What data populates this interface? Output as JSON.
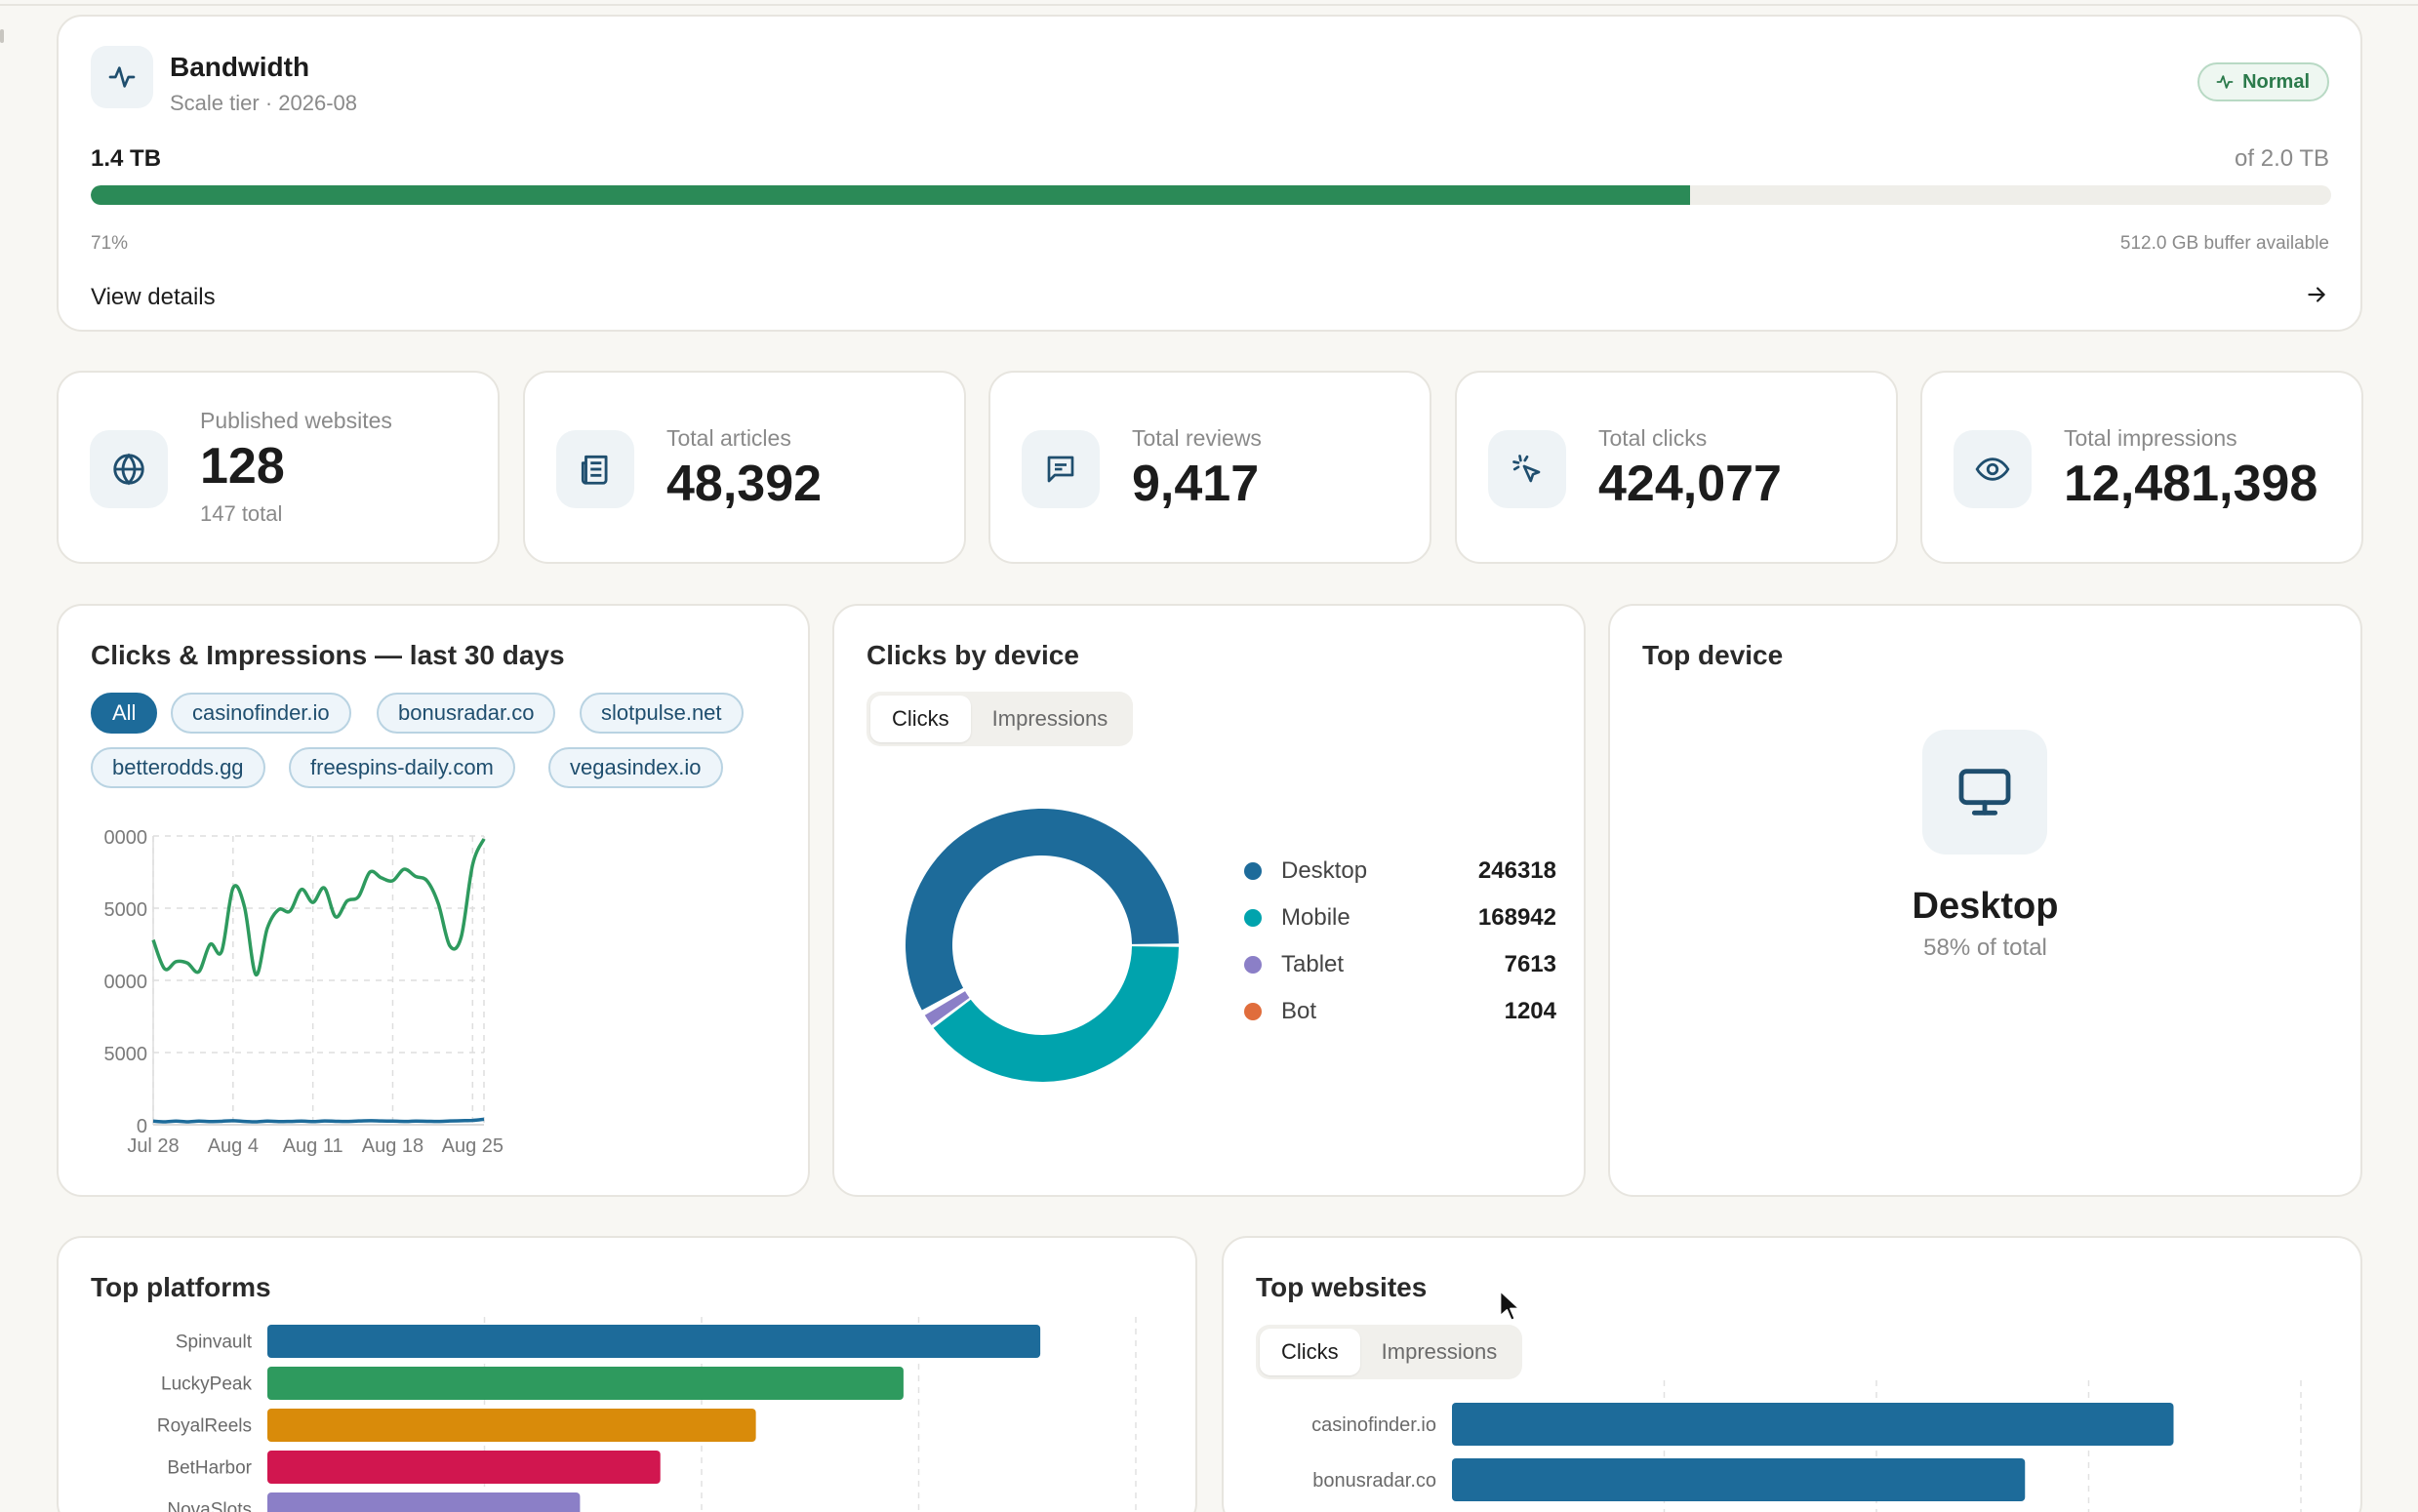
{
  "bandwidth": {
    "title": "Bandwidth",
    "subtitle": "Scale tier · 2026-08",
    "status": "Normal",
    "used": "1.4 TB",
    "total": "of 2.0 TB",
    "percent_label": "71%",
    "fill_fraction": 0.714,
    "buffer": "512.0 GB buffer available",
    "details_link": "View details",
    "colors": {
      "fill": "#2b8a57",
      "badge": "#2b7a4b"
    }
  },
  "stats": [
    {
      "label": "Published websites",
      "value": "128",
      "note": "147 total",
      "icon": "globe-icon"
    },
    {
      "label": "Total articles",
      "value": "48,392",
      "icon": "newspaper-icon"
    },
    {
      "label": "Total reviews",
      "value": "9,417",
      "icon": "message-icon"
    },
    {
      "label": "Total clicks",
      "value": "424,077",
      "icon": "cursor-click-icon"
    },
    {
      "label": "Total impressions",
      "value": "12,481,398",
      "icon": "eye-icon"
    }
  ],
  "line_card": {
    "title": "Clicks & Impressions — last 30 days",
    "filters": [
      "All",
      "casinofinder.io",
      "bonusradar.co",
      "slotpulse.net",
      "betterodds.gg",
      "freespins-daily.com",
      "vegasindex.io"
    ],
    "active_filter": "All"
  },
  "device_card": {
    "title": "Clicks by device",
    "tabs": [
      "Clicks",
      "Impressions"
    ],
    "active_tab": "Clicks"
  },
  "top_device": {
    "title": "Top device",
    "name": "Desktop",
    "share": "58% of total",
    "icon": "monitor-icon"
  },
  "platforms_card": {
    "title": "Top platforms"
  },
  "websites_card": {
    "title": "Top websites",
    "tabs": [
      "Clicks",
      "Impressions"
    ],
    "active_tab": "Clicks"
  },
  "chart_data": [
    {
      "type": "line",
      "title": "Clicks & Impressions — last 30 days",
      "x": [
        "Jul 28",
        "Jul 29",
        "Jul 30",
        "Jul 31",
        "Aug 1",
        "Aug 2",
        "Aug 3",
        "Aug 4",
        "Aug 5",
        "Aug 6",
        "Aug 7",
        "Aug 8",
        "Aug 9",
        "Aug 10",
        "Aug 11",
        "Aug 12",
        "Aug 13",
        "Aug 14",
        "Aug 15",
        "Aug 16",
        "Aug 17",
        "Aug 18",
        "Aug 19",
        "Aug 20",
        "Aug 21",
        "Aug 22",
        "Aug 23",
        "Aug 24",
        "Aug 25",
        "Aug 26"
      ],
      "xticks": [
        "Jul 28",
        "Aug 4",
        "Aug 11",
        "Aug 18",
        "Aug 25"
      ],
      "ytick_labels": [
        "0",
        "5000",
        "0000",
        "5000",
        "0000"
      ],
      "ylim": [
        0,
        20000
      ],
      "grid": true,
      "series": [
        {
          "color": "#2e9a5e",
          "values": [
            12800,
            10800,
            11300,
            11200,
            10600,
            12500,
            12000,
            16400,
            15100,
            10400,
            13600,
            14900,
            14800,
            16300,
            15400,
            16400,
            14400,
            15500,
            15800,
            17500,
            17100,
            16900,
            17700,
            17200,
            16900,
            15300,
            12400,
            13000,
            18000,
            19800
          ]
        },
        {
          "color": "#1d6b9a",
          "values": [
            250,
            200,
            250,
            200,
            250,
            220,
            240,
            280,
            230,
            200,
            250,
            220,
            230,
            250,
            220,
            260,
            240,
            230,
            260,
            280,
            260,
            250,
            230,
            250,
            240,
            230,
            260,
            280,
            300,
            380
          ]
        }
      ]
    },
    {
      "type": "pie",
      "title": "Clicks by device",
      "donut": true,
      "categories": [
        "Desktop",
        "Mobile",
        "Tablet",
        "Bot"
      ],
      "values": [
        246318,
        168942,
        7613,
        1204
      ],
      "colors": [
        "#1d6b9a",
        "#00a3ad",
        "#8b7fc7",
        "#e06d3c"
      ],
      "legend": "right"
    },
    {
      "type": "bar",
      "orientation": "horizontal",
      "title": "Top platforms",
      "categories": [
        "Spinvault",
        "LuckyPeak",
        "RoyalReels",
        "BetHarbor",
        "NovaSlots"
      ],
      "values": [
        3560,
        2930,
        2250,
        1810,
        1440
      ],
      "xlim": [
        0,
        4000
      ],
      "colors": [
        "#1d6b9a",
        "#2e9a5e",
        "#d98b0a",
        "#d1164f",
        "#8b7fc7"
      ]
    },
    {
      "type": "bar",
      "orientation": "horizontal",
      "title": "Top websites",
      "categories": [
        "casinofinder.io",
        "bonusradar.co"
      ],
      "values": [
        68000,
        54000
      ],
      "xlim": [
        0,
        80000
      ],
      "colors": [
        "#1d6b9a",
        "#1d6b9a"
      ]
    }
  ]
}
